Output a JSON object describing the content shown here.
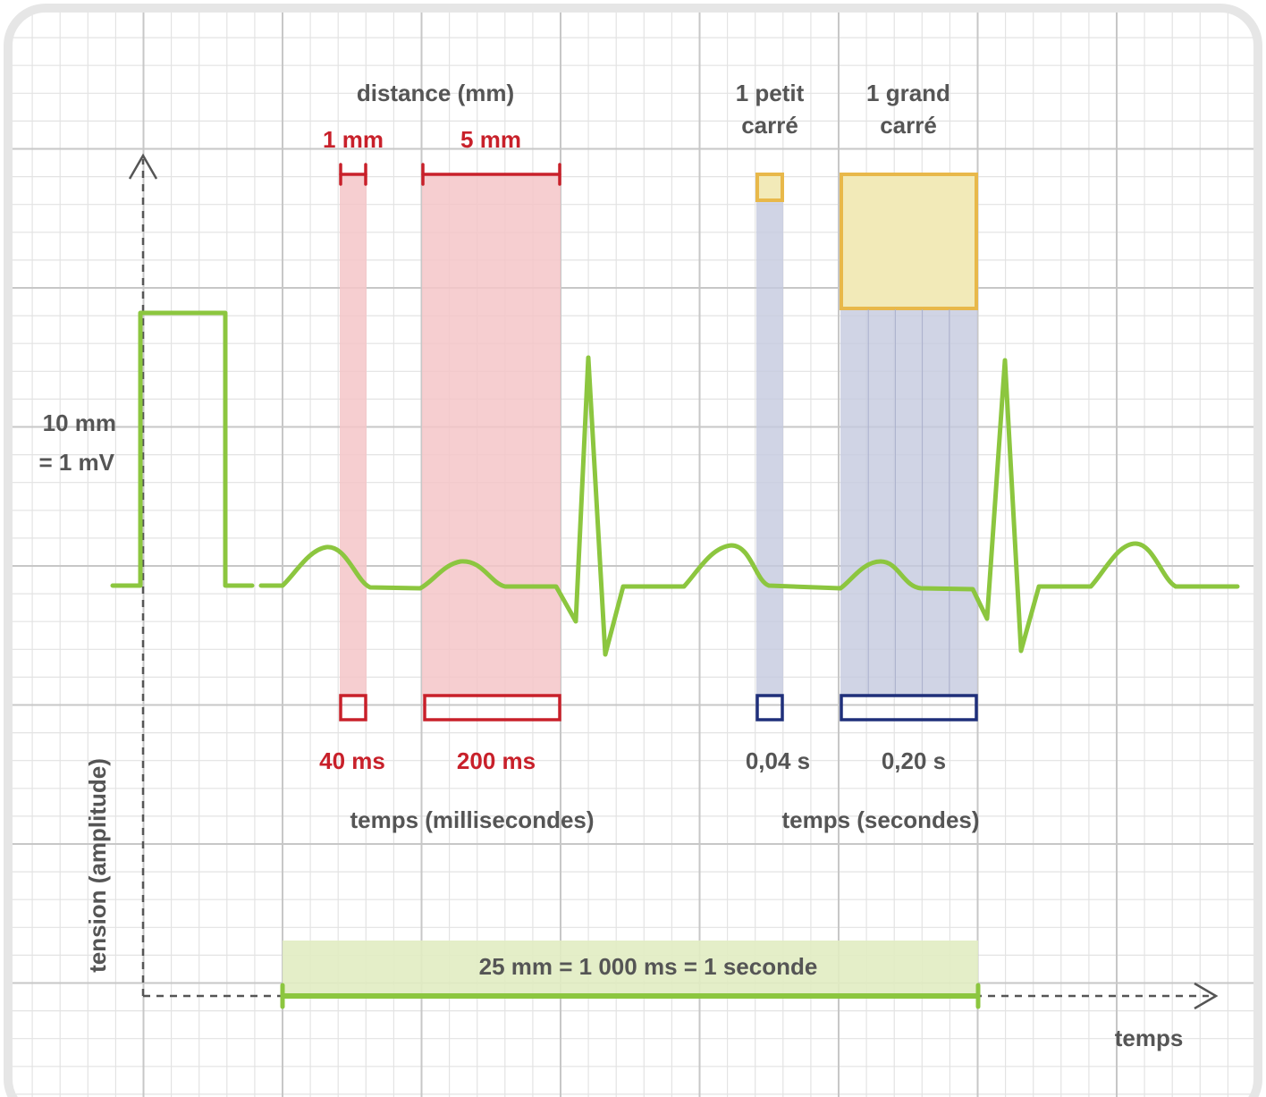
{
  "labels": {
    "distance_header": "distance (mm)",
    "one_mm": "1 mm",
    "five_mm": "5 mm",
    "small_square_l1": "1 petit",
    "small_square_l2": "carré",
    "big_square_l1": "1 grand",
    "big_square_l2": "carré",
    "amplitude_l1": "10 mm",
    "amplitude_l2": "= 1 mV",
    "ms_40": "40 ms",
    "ms_200": "200 ms",
    "s_004": "0,04 s",
    "s_020": "0,20 s",
    "time_ms_header": "temps (millisecondes)",
    "time_s_header": "temps (secondes)",
    "y_axis_label": "tension (amplitude)",
    "x_axis_label": "temps",
    "scale_banner": "25 mm = 1 000 ms = 1 seconde"
  },
  "colors": {
    "grid_minor": "#e3e3e3",
    "grid_major": "#c7c7c7",
    "ecg_trace": "#8cc63f",
    "red_accent": "#c8202a",
    "red_fill": "#f4c6c8",
    "blue_accent": "#1f2f7a",
    "blue_fill": "#c4c9df",
    "yellow_accent": "#e8b84a",
    "yellow_fill": "#f2eab8",
    "green_fill": "#e1ecc2",
    "text_dark": "#555555"
  }
}
